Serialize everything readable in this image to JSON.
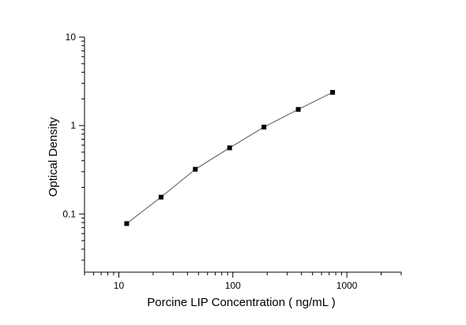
{
  "chart_data": {
    "type": "scatter",
    "x_scale": "log",
    "y_scale": "log",
    "xlim": [
      5,
      3000
    ],
    "ylim": [
      0.022,
      10
    ],
    "xlabel": "Porcine LIP Concentration ( ng/mL )",
    "ylabel": "Optical Density",
    "x_ticks": [
      10,
      100,
      1000
    ],
    "x_tick_labels": [
      "10",
      "100",
      "1000"
    ],
    "y_ticks": [
      0.1,
      1,
      10
    ],
    "y_tick_labels": [
      "0.1",
      "1",
      "10"
    ],
    "grid": false,
    "series": [
      {
        "style": "line+square-markers",
        "color": "#000000",
        "x": [
          11.72,
          23.44,
          46.88,
          93.75,
          187.5,
          375,
          750
        ],
        "y": [
          0.078,
          0.155,
          0.32,
          0.56,
          0.96,
          1.52,
          2.37
        ]
      }
    ]
  }
}
